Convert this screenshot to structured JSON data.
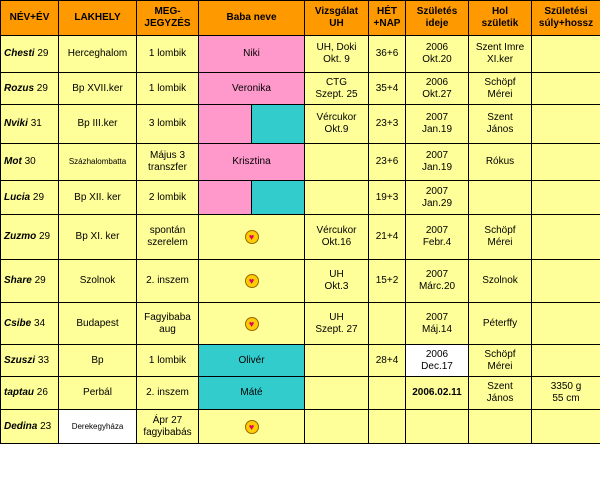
{
  "headers": [
    "NÉV+ÉV",
    "LAKHELY",
    "MEG-\nJEGYZÉS",
    "Baba neve",
    "Vizsgálat\nUH",
    "HÉT\n+NAP",
    "Születés\nideje",
    "Hol\nszületik",
    "Születési\nsúly+hossz"
  ],
  "rows": [
    {
      "nick": "Chesti",
      "age": "29",
      "place": "Herceghalom",
      "note": "1 lombik",
      "baby": "Niki",
      "baby_style": "pink",
      "exam": "UH, Doki\nOkt. 9",
      "week": "36+6",
      "birth": "2006\nOkt.20",
      "where": "Szent Imre\nXI.ker",
      "weight": ""
    },
    {
      "nick": "Rozus",
      "age": "29",
      "place": "Bp XVII.ker",
      "note": "1 lombik",
      "baby": "Veronika",
      "baby_style": "pink",
      "exam": "CTG\nSzept. 25",
      "week": "35+4",
      "birth": "2006\nOkt.27",
      "where": "Schöpf\nMérei",
      "weight": ""
    },
    {
      "nick": "Nviki",
      "age": "31",
      "place": "Bp III.ker",
      "note": "3 lombik",
      "baby": "",
      "baby_style": "split",
      "exam": "Vércukor\nOkt.9",
      "week": "23+3",
      "birth": "2007\nJan.19",
      "where": "Szent\nJános",
      "weight": ""
    },
    {
      "nick": "Mot",
      "age": "30",
      "place": "Százhalombatta",
      "place_small": true,
      "note": "Május 3\ntranszfer",
      "baby": "Krisztina",
      "baby_style": "pink",
      "exam": "",
      "week": "23+6",
      "birth": "2007\nJan.19",
      "where": "Rókus",
      "weight": ""
    },
    {
      "nick": "Lucia",
      "age": "29",
      "place": "Bp XII. ker",
      "note": "2 lombik",
      "baby": "",
      "baby_style": "split",
      "exam": "",
      "week": "19+3",
      "birth": "2007\nJan.29",
      "where": "",
      "weight": ""
    },
    {
      "nick": "Zuzmo",
      "age": "29",
      "place": "Bp XI. ker",
      "note": "spontán\nszerelem",
      "baby": "",
      "baby_style": "heart",
      "exam": "Vércukor\nOkt.16",
      "week": "21+4",
      "birth": "2007\nFebr.4",
      "where": "Schöpf\nMérei",
      "weight": ""
    },
    {
      "nick": "Share",
      "age": "29",
      "place": "Szolnok",
      "note": "2. inszem",
      "baby": "",
      "baby_style": "heart",
      "exam": "UH\nOkt.3",
      "week": "15+2",
      "birth": "2007\nMárc.20",
      "where": "Szolnok",
      "weight": ""
    },
    {
      "nick": "Csibe",
      "age": "34",
      "place": "Budapest",
      "note": "Fagyibaba\naug",
      "baby": "",
      "baby_style": "heart",
      "exam": "UH\nSzept. 27",
      "week": "",
      "birth": "2007\nMáj.14",
      "where": "Péterffy",
      "weight": ""
    },
    {
      "nick": "Szuszi",
      "age": "33",
      "place": "Bp",
      "note": "1 lombik",
      "baby": "Olivér",
      "baby_style": "teal",
      "exam": "",
      "week": "28+4",
      "birth": "2006\nDec.17",
      "birth_white": true,
      "where": "Schöpf\nMérei",
      "weight": ""
    },
    {
      "nick": "taptau",
      "age": "26",
      "place": "Perbál",
      "note": "2. inszem",
      "baby": "Máté",
      "baby_style": "teal",
      "exam": "",
      "week": "",
      "birth": "2006.02.11",
      "birth_bold": true,
      "where": "Szent\nJános",
      "weight": "3350 g\n55 cm"
    },
    {
      "nick": "Dedina",
      "age": "23",
      "place": "Derekegyháza",
      "place_small": true,
      "place_white": true,
      "note": "Ápr 27\nfagyibabás",
      "baby": "",
      "baby_style": "heart",
      "exam": "",
      "week": "",
      "birth": "",
      "where": "",
      "weight": ""
    }
  ],
  "colors": {
    "header": "#ff9900",
    "cell": "#ffff99",
    "pink": "#ff99cc",
    "teal": "#33cccc"
  },
  "icons": {
    "heart": "heart-smiley-icon"
  }
}
